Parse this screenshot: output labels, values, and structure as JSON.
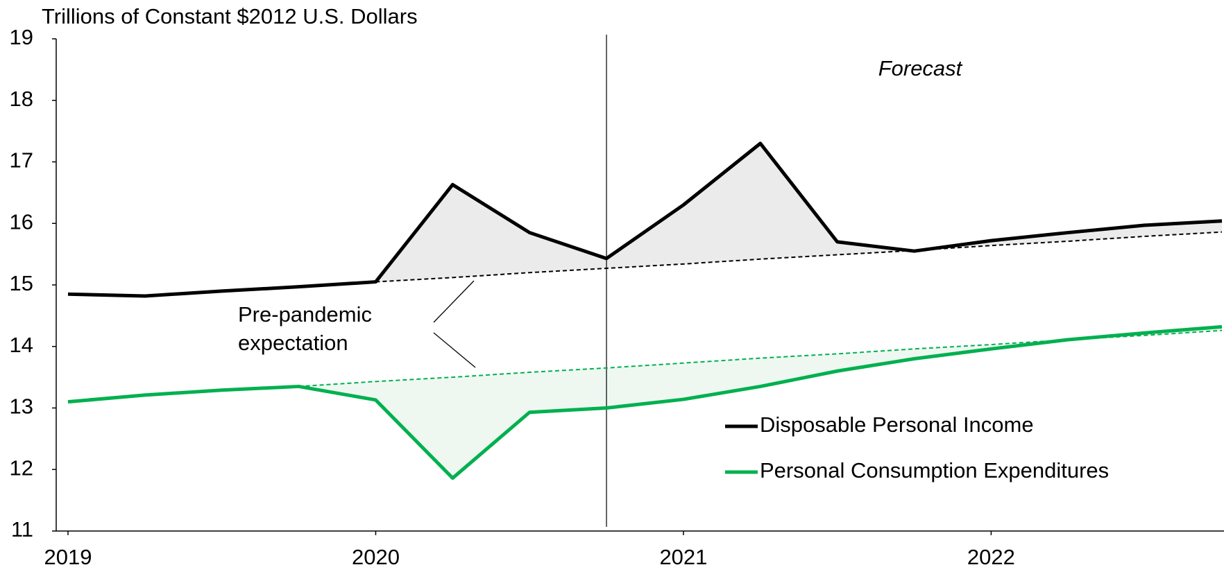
{
  "chart_data": {
    "type": "line",
    "y_label": "Trillions of Constant $2012 U.S. Dollars",
    "x": [
      2019,
      2019.25,
      2019.5,
      2019.75,
      2020,
      2020.25,
      2020.5,
      2020.75,
      2021,
      2021.25,
      2021.5,
      2021.75,
      2022,
      2022.25,
      2022.5,
      2022.75
    ],
    "series": [
      {
        "name": "Disposable Personal Income",
        "color": "#000000",
        "values": [
          14.85,
          14.82,
          14.9,
          14.97,
          15.05,
          16.63,
          15.85,
          15.43,
          16.3,
          17.3,
          15.7,
          15.55,
          15.72,
          15.85,
          15.97,
          16.04
        ]
      },
      {
        "name": "Personal Consumption Expenditures",
        "color": "#00b04f",
        "values": [
          13.1,
          13.21,
          13.29,
          13.35,
          13.13,
          11.86,
          12.93,
          13.0,
          13.14,
          13.35,
          13.6,
          13.8,
          13.96,
          14.11,
          14.22,
          14.32
        ]
      }
    ],
    "expectations": [
      {
        "color": "#000000",
        "values": [
          null,
          null,
          null,
          null,
          15.05,
          15.12,
          15.2,
          15.27,
          15.34,
          15.42,
          15.49,
          15.56,
          15.64,
          15.71,
          15.79,
          15.86
        ]
      },
      {
        "color": "#00b04f",
        "values": [
          null,
          null,
          null,
          13.35,
          13.43,
          13.5,
          13.58,
          13.65,
          13.73,
          13.81,
          13.88,
          13.96,
          14.03,
          14.11,
          14.18,
          14.26
        ]
      }
    ],
    "annotations": [
      "Forecast",
      "Pre-pandemic",
      "expectation"
    ],
    "forecast_start": 2020.75,
    "xlim": [
      2019,
      2022.75
    ],
    "xticks": [
      2019,
      2020,
      2021,
      2022
    ],
    "ylim": [
      11,
      19
    ],
    "yticks": [
      11,
      12,
      13,
      14,
      15,
      16,
      17,
      18,
      19
    ]
  }
}
